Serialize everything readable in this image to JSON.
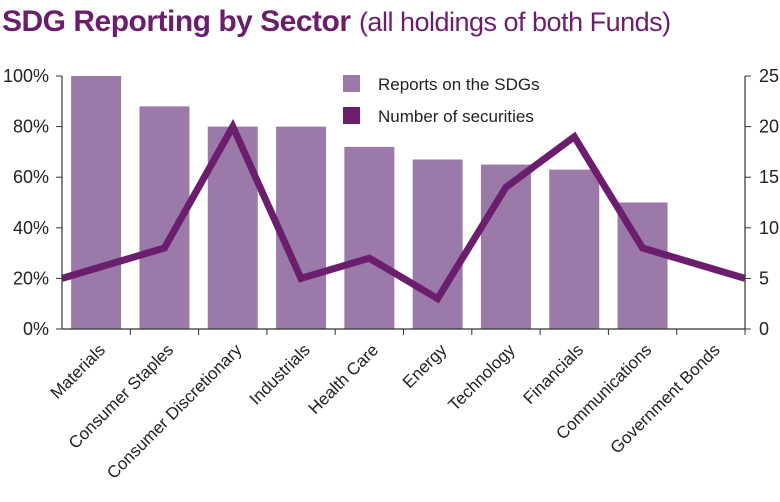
{
  "title": {
    "main": "SDG Reporting by Sector",
    "sub": "(all holdings of both Funds)"
  },
  "colors": {
    "bar": "#9b7aaa",
    "line": "#6b1e6e",
    "title": "#6b1e6e",
    "axis": "#333333"
  },
  "chart_data": {
    "type": "bar",
    "categories": [
      "Materials",
      "Consumer Staples",
      "Consumer Discretionary",
      "Industrials",
      "Health Care",
      "Energy",
      "Technology",
      "Financials",
      "Communications",
      "Government Bonds"
    ],
    "series": [
      {
        "name": "Reports on the SDGs",
        "type": "bar",
        "axis": "left",
        "values": [
          100,
          88,
          80,
          80,
          72,
          67,
          65,
          63,
          50,
          0
        ]
      },
      {
        "name": "Number of securities",
        "type": "line",
        "axis": "right",
        "values": [
          5,
          8,
          20,
          5,
          7,
          3,
          14,
          19,
          8,
          5
        ]
      }
    ],
    "y_left": {
      "ylim": [
        0,
        100
      ],
      "ticks": [
        "0%",
        "20%",
        "40%",
        "60%",
        "80%",
        "100%"
      ]
    },
    "y_right": {
      "ylim": [
        0,
        25
      ],
      "ticks": [
        "0",
        "5",
        "10",
        "15",
        "20",
        "25"
      ]
    },
    "legend_position": "top-center",
    "grid": false
  }
}
